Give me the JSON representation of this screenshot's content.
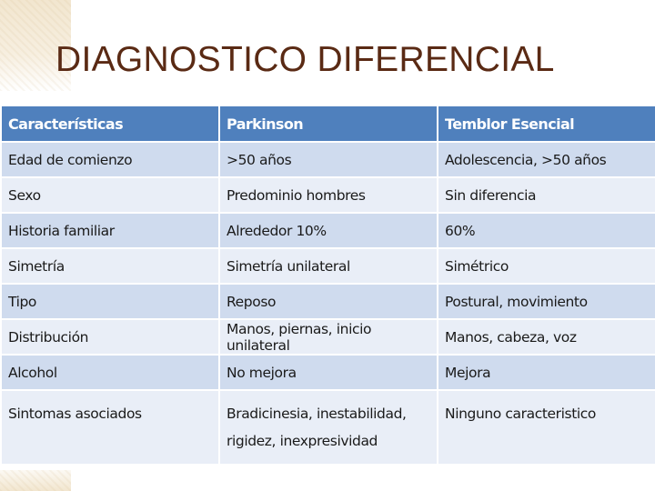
{
  "title": "DIAGNOSTICO DIFERENCIAL",
  "table": {
    "headers": [
      "Características",
      "Parkinson",
      "Temblor Esencial"
    ],
    "rows": [
      [
        "Edad de comienzo",
        ">50 años",
        "Adolescencia, >50 años"
      ],
      [
        "Sexo",
        "Predominio hombres",
        "Sin diferencia"
      ],
      [
        "Historia familiar",
        "Alrededor 10%",
        "60%"
      ],
      [
        "Simetría",
        "Simetría unilateral",
        "Simétrico"
      ],
      [
        "Tipo",
        "Reposo",
        "Postural, movimiento"
      ],
      [
        "Distribución",
        "Manos, piernas, inicio unilateral",
        "Manos, cabeza, voz"
      ],
      [
        "Alcohol",
        "No mejora",
        "Mejora"
      ],
      [
        "Sintomas asociados",
        [
          "Bradicinesia, inestabilidad,",
          "rigidez, inexpresividad"
        ],
        "Ninguno caracteristico"
      ]
    ]
  },
  "colors": {
    "header_bg": "#4f80bd",
    "row_odd_bg": "#cfdbee",
    "row_even_bg": "#e9eef7",
    "title_color": "#5a2a14"
  }
}
